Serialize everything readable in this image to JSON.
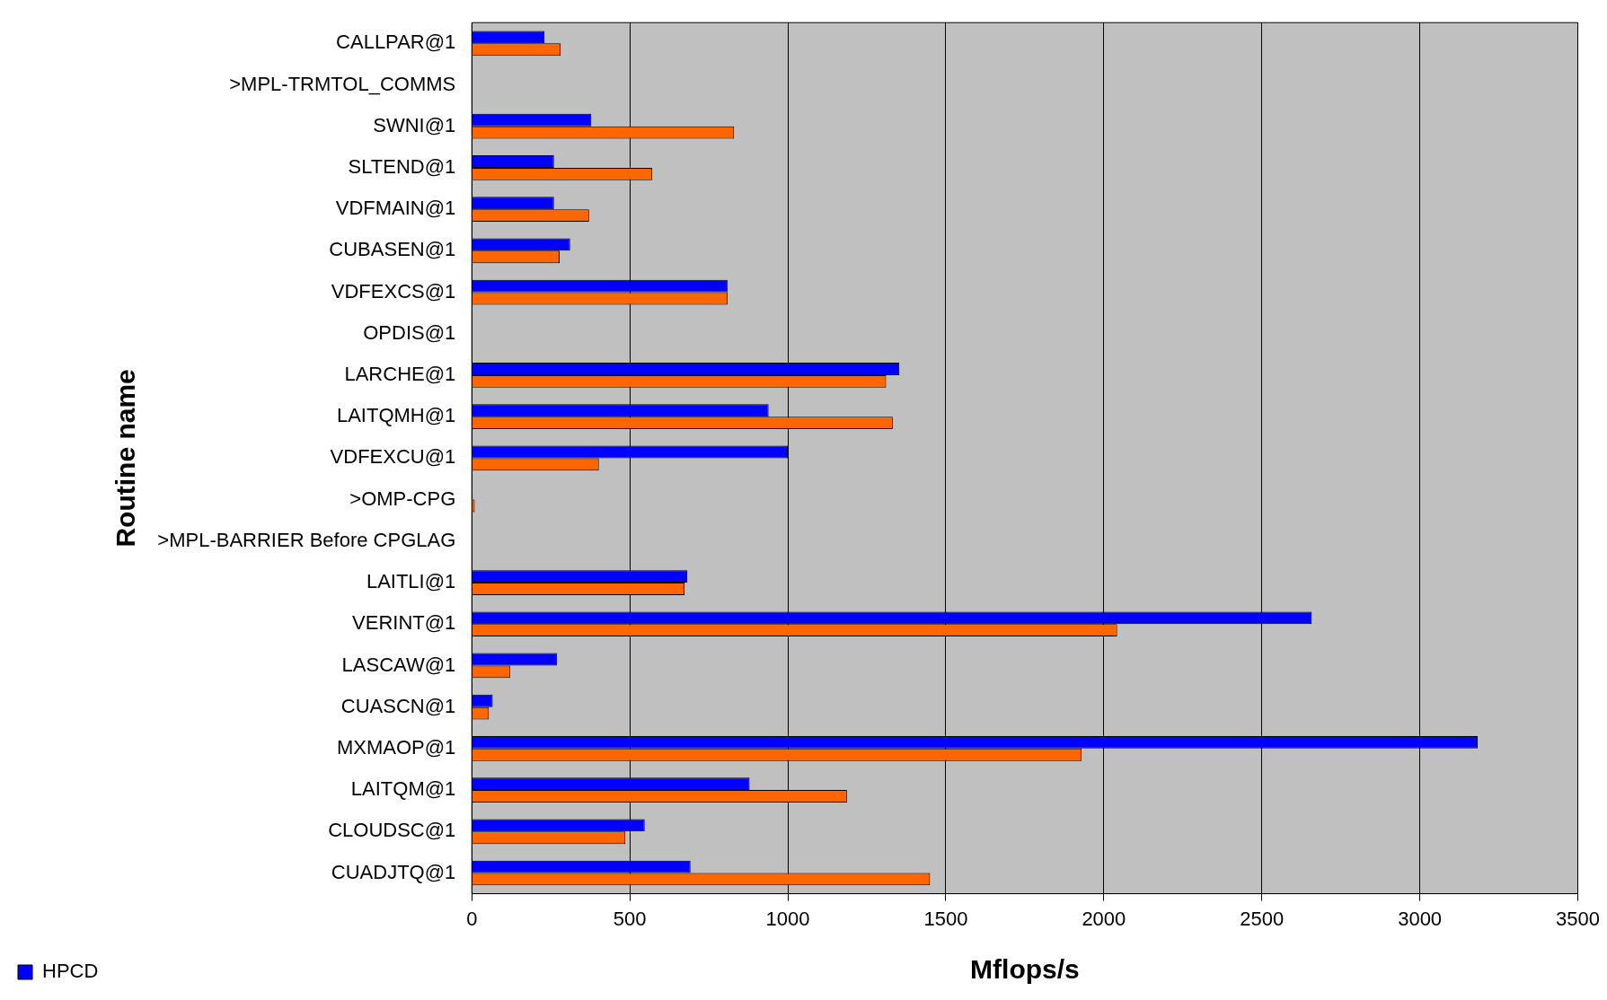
{
  "chart_data": {
    "type": "bar",
    "orientation": "horizontal",
    "xlabel": "Mflops/s",
    "ylabel": "Routine name",
    "categories": [
      "CALLPAR@1",
      ">MPL-TRMTOL_COMMS",
      "SWNI@1",
      "SLTEND@1",
      "VDFMAIN@1",
      "CUBASEN@1",
      "VDFEXCS@1",
      "OPDIS@1",
      "LARCHE@1",
      "LAITQMH@1",
      "VDFEXCU@1",
      ">OMP-CPG",
      ">MPL-BARRIER Before CPGLAG",
      "LAITLI@1",
      "VERINT@1",
      "LASCAW@1",
      "CUASCN@1",
      "MXMAOP@1",
      "LAITQM@1",
      "CLOUDSC@1",
      "CUADJTQ@1"
    ],
    "series": [
      {
        "name": "HPCD",
        "color": "#0000ff",
        "values": [
          230,
          null,
          378,
          260,
          260,
          311,
          809,
          null,
          1353,
          939,
          1000,
          null,
          null,
          682,
          2658,
          269,
          66,
          3183,
          879,
          547,
          692
        ]
      },
      {
        "color": "#ff6600",
        "values": [
          281,
          null,
          830,
          571,
          371,
          278,
          809,
          null,
          1311,
          1332,
          402,
          9,
          null,
          673,
          2042,
          121,
          54,
          1930,
          1187,
          486,
          1450
        ]
      }
    ],
    "xlim": [
      0,
      3500
    ],
    "xticks": [
      0,
      500,
      1000,
      1500,
      2000,
      2500,
      3000,
      3500
    ],
    "grid": "x",
    "legend": "bottom left"
  }
}
